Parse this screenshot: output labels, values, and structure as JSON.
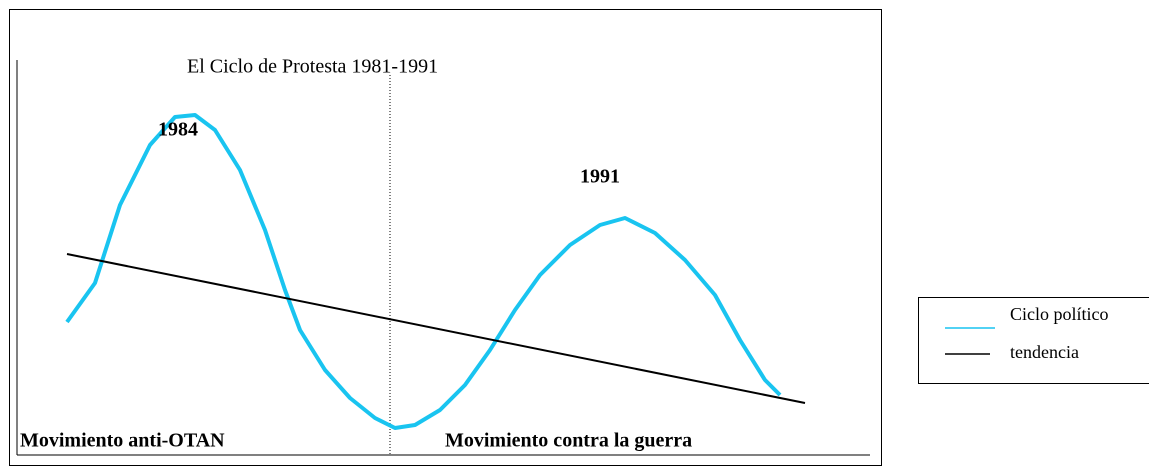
{
  "title": "El Ciclo de Protesta 1981-1991",
  "peaks": [
    "1984",
    "1991"
  ],
  "periods": [
    "Movimiento anti-OTAN",
    "Movimiento contra la guerra"
  ],
  "legend": [
    "Ciclo político",
    "tendencia"
  ]
}
